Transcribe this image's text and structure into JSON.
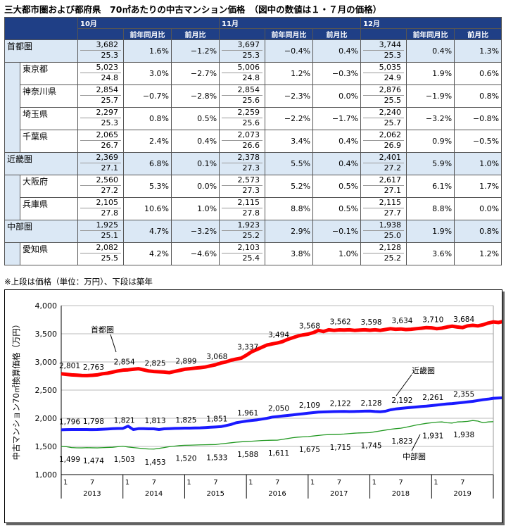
{
  "title": "三大都市圏および都府県　70㎡あたりの中古マンション価格　（図中の数値は１・７月の価格）",
  "table": {
    "months": [
      "10月",
      "11月",
      "12月"
    ],
    "subheaders": [
      "前年同月比",
      "前月比"
    ],
    "rows": [
      {
        "name": "首都圏",
        "region": true,
        "cells": [
          {
            "price": "3,682",
            "age": "25.3",
            "yoy": "1.6%",
            "mom": "−1.2%"
          },
          {
            "price": "3,697",
            "age": "25.3",
            "yoy": "−0.4%",
            "mom": "0.4%"
          },
          {
            "price": "3,744",
            "age": "25.3",
            "yoy": "0.4%",
            "mom": "1.3%"
          }
        ]
      },
      {
        "name": "東京都",
        "region": false,
        "cells": [
          {
            "price": "5,023",
            "age": "24.8",
            "yoy": "3.0%",
            "mom": "−2.7%"
          },
          {
            "price": "5,006",
            "age": "24.8",
            "yoy": "1.2%",
            "mom": "−0.3%"
          },
          {
            "price": "5,035",
            "age": "24.9",
            "yoy": "1.9%",
            "mom": "0.6%"
          }
        ]
      },
      {
        "name": "神奈川県",
        "region": false,
        "cells": [
          {
            "price": "2,854",
            "age": "25.7",
            "yoy": "−0.7%",
            "mom": "−2.8%"
          },
          {
            "price": "2,854",
            "age": "25.6",
            "yoy": "−2.3%",
            "mom": "0.0%"
          },
          {
            "price": "2,876",
            "age": "25.5",
            "yoy": "−1.9%",
            "mom": "0.8%"
          }
        ]
      },
      {
        "name": "埼玉県",
        "region": false,
        "cells": [
          {
            "price": "2,297",
            "age": "25.3",
            "yoy": "0.8%",
            "mom": "0.5%"
          },
          {
            "price": "2,259",
            "age": "25.6",
            "yoy": "−2.2%",
            "mom": "−1.7%"
          },
          {
            "price": "2,240",
            "age": "25.7",
            "yoy": "−3.2%",
            "mom": "−0.8%"
          }
        ]
      },
      {
        "name": "千葉県",
        "region": false,
        "cells": [
          {
            "price": "2,065",
            "age": "26.7",
            "yoy": "2.4%",
            "mom": "0.4%"
          },
          {
            "price": "2,073",
            "age": "26.6",
            "yoy": "3.4%",
            "mom": "0.4%"
          },
          {
            "price": "2,062",
            "age": "26.9",
            "yoy": "0.9%",
            "mom": "−0.5%"
          }
        ]
      },
      {
        "name": "近畿圏",
        "region": true,
        "cells": [
          {
            "price": "2,369",
            "age": "27.1",
            "yoy": "6.8%",
            "mom": "0.1%"
          },
          {
            "price": "2,378",
            "age": "27.3",
            "yoy": "5.5%",
            "mom": "0.4%"
          },
          {
            "price": "2,401",
            "age": "27.2",
            "yoy": "5.9%",
            "mom": "1.0%"
          }
        ]
      },
      {
        "name": "大阪府",
        "region": false,
        "cells": [
          {
            "price": "2,560",
            "age": "27.2",
            "yoy": "5.3%",
            "mom": "0.0%"
          },
          {
            "price": "2,573",
            "age": "27.3",
            "yoy": "5.2%",
            "mom": "0.5%"
          },
          {
            "price": "2,617",
            "age": "27.1",
            "yoy": "6.1%",
            "mom": "1.7%"
          }
        ]
      },
      {
        "name": "兵庫県",
        "region": false,
        "cells": [
          {
            "price": "2,105",
            "age": "27.8",
            "yoy": "10.6%",
            "mom": "1.0%"
          },
          {
            "price": "2,115",
            "age": "27.8",
            "yoy": "8.8%",
            "mom": "0.5%"
          },
          {
            "price": "2,115",
            "age": "27.7",
            "yoy": "8.8%",
            "mom": "0.0%"
          }
        ]
      },
      {
        "name": "中部圏",
        "region": true,
        "cells": [
          {
            "price": "1,925",
            "age": "25.1",
            "yoy": "4.7%",
            "mom": "−3.2%"
          },
          {
            "price": "1,923",
            "age": "25.2",
            "yoy": "2.9%",
            "mom": "−0.1%"
          },
          {
            "price": "1,938",
            "age": "25.0",
            "yoy": "1.9%",
            "mom": "0.8%"
          }
        ]
      },
      {
        "name": "愛知県",
        "region": false,
        "cells": [
          {
            "price": "2,082",
            "age": "25.5",
            "yoy": "4.2%",
            "mom": "−4.6%"
          },
          {
            "price": "2,103",
            "age": "25.4",
            "yoy": "3.8%",
            "mom": "1.0%"
          },
          {
            "price": "2,128",
            "age": "25.2",
            "yoy": "3.6%",
            "mom": "1.2%"
          }
        ]
      }
    ]
  },
  "note": "※上段は価格（単位：万円）、下段は築年",
  "chart_data": {
    "type": "line",
    "ylabel": "中古マンション70㎡換算価格（万円）",
    "ylim": [
      1000,
      4000
    ],
    "yticks": [
      "1,000",
      "1,500",
      "2,000",
      "2,500",
      "3,000",
      "3,500",
      "4,000"
    ],
    "ytick_values": [
      1000,
      1500,
      2000,
      2500,
      3000,
      3500,
      4000
    ],
    "years": [
      "2013",
      "2014",
      "2015",
      "2016",
      "2017",
      "2018",
      "2019"
    ],
    "month_ticks": [
      "1",
      "7"
    ],
    "grid": true,
    "colors": {
      "首都圏": "#ff0000",
      "近畿圏": "#1a1aff",
      "中部圏": "#229922"
    },
    "series": [
      {
        "name": "首都圏",
        "labels": [
          "2,801",
          "2,763",
          "2,854",
          "2,825",
          "2,899",
          "3,068",
          "3,337",
          "3,494",
          "3,568",
          "3,562",
          "3,598",
          "3,634",
          "3,710",
          "3,684"
        ],
        "values": [
          2790,
          2780,
          2770,
          2765,
          2760,
          2758,
          2763,
          2770,
          2790,
          2800,
          2820,
          2840,
          2854,
          2860,
          2870,
          2880,
          2860,
          2840,
          2830,
          2825,
          2820,
          2810,
          2830,
          2850,
          2870,
          2880,
          2890,
          2899,
          2910,
          2930,
          2950,
          2980,
          3000,
          3030,
          3050,
          3068,
          3120,
          3180,
          3220,
          3260,
          3300,
          3320,
          3337,
          3360,
          3400,
          3430,
          3460,
          3480,
          3494,
          3520,
          3560,
          3540,
          3570,
          3560,
          3568,
          3565,
          3570,
          3560,
          3565,
          3570,
          3562,
          3570,
          3560,
          3575,
          3590,
          3580,
          3585,
          3575,
          3580,
          3590,
          3598,
          3610,
          3605,
          3590,
          3600,
          3620,
          3634,
          3620,
          3610,
          3640,
          3650,
          3640,
          3660,
          3690,
          3710,
          3700,
          3720,
          3710,
          3690,
          3700,
          3684,
          3690,
          3700,
          3710,
          3720,
          3700,
          3740
        ]
      },
      {
        "name": "近畿圏",
        "labels": [
          "1,796",
          "1,798",
          "1,821",
          "1,813",
          "1,825",
          "1,851",
          "1,961",
          "2,050",
          "2,109",
          "2,122",
          "2,128",
          "2,192",
          "2,261",
          "2,355"
        ],
        "values": [
          1796,
          1798,
          1800,
          1800,
          1800,
          1800,
          1798,
          1800,
          1805,
          1810,
          1815,
          1818,
          1821,
          1860,
          1800,
          1815,
          1815,
          1813,
          1813,
          1800,
          1812,
          1815,
          1820,
          1822,
          1825,
          1825,
          1828,
          1830,
          1835,
          1840,
          1845,
          1851,
          1870,
          1890,
          1920,
          1935,
          1950,
          1961,
          1970,
          1985,
          2000,
          2020,
          2030,
          2040,
          2050,
          2060,
          2070,
          2080,
          2090,
          2100,
          2109,
          2112,
          2115,
          2118,
          2120,
          2122,
          2118,
          2120,
          2124,
          2126,
          2128,
          2120,
          2115,
          2125,
          2150,
          2165,
          2175,
          2185,
          2192,
          2200,
          2210,
          2215,
          2225,
          2235,
          2245,
          2255,
          2261,
          2270,
          2280,
          2290,
          2300,
          2315,
          2330,
          2340,
          2355,
          2360,
          2365,
          2370,
          2380,
          2390,
          2400
        ]
      },
      {
        "name": "中部圏",
        "labels": [
          "1,499",
          "1,474",
          "1,503",
          "1,453",
          "1,520",
          "1,533",
          "1,588",
          "1,611",
          "1,675",
          "1,715",
          "1,745",
          "1,823",
          "1,931",
          "1,938"
        ],
        "values": [
          1499,
          1495,
          1480,
          1475,
          1474,
          1478,
          1476,
          1474,
          1478,
          1482,
          1485,
          1495,
          1503,
          1490,
          1480,
          1470,
          1460,
          1455,
          1453,
          1465,
          1480,
          1495,
          1505,
          1515,
          1520,
          1522,
          1525,
          1528,
          1530,
          1532,
          1533,
          1545,
          1555,
          1565,
          1575,
          1582,
          1588,
          1592,
          1598,
          1605,
          1608,
          1610,
          1611,
          1625,
          1640,
          1655,
          1665,
          1670,
          1675,
          1685,
          1695,
          1705,
          1710,
          1712,
          1715,
          1720,
          1728,
          1735,
          1740,
          1742,
          1745,
          1760,
          1775,
          1790,
          1805,
          1815,
          1823,
          1840,
          1860,
          1880,
          1895,
          1910,
          1920,
          1931,
          1935,
          1920,
          1915,
          1935,
          1938,
          1945,
          1960,
          1950,
          1920,
          1935,
          1940
        ]
      }
    ]
  }
}
